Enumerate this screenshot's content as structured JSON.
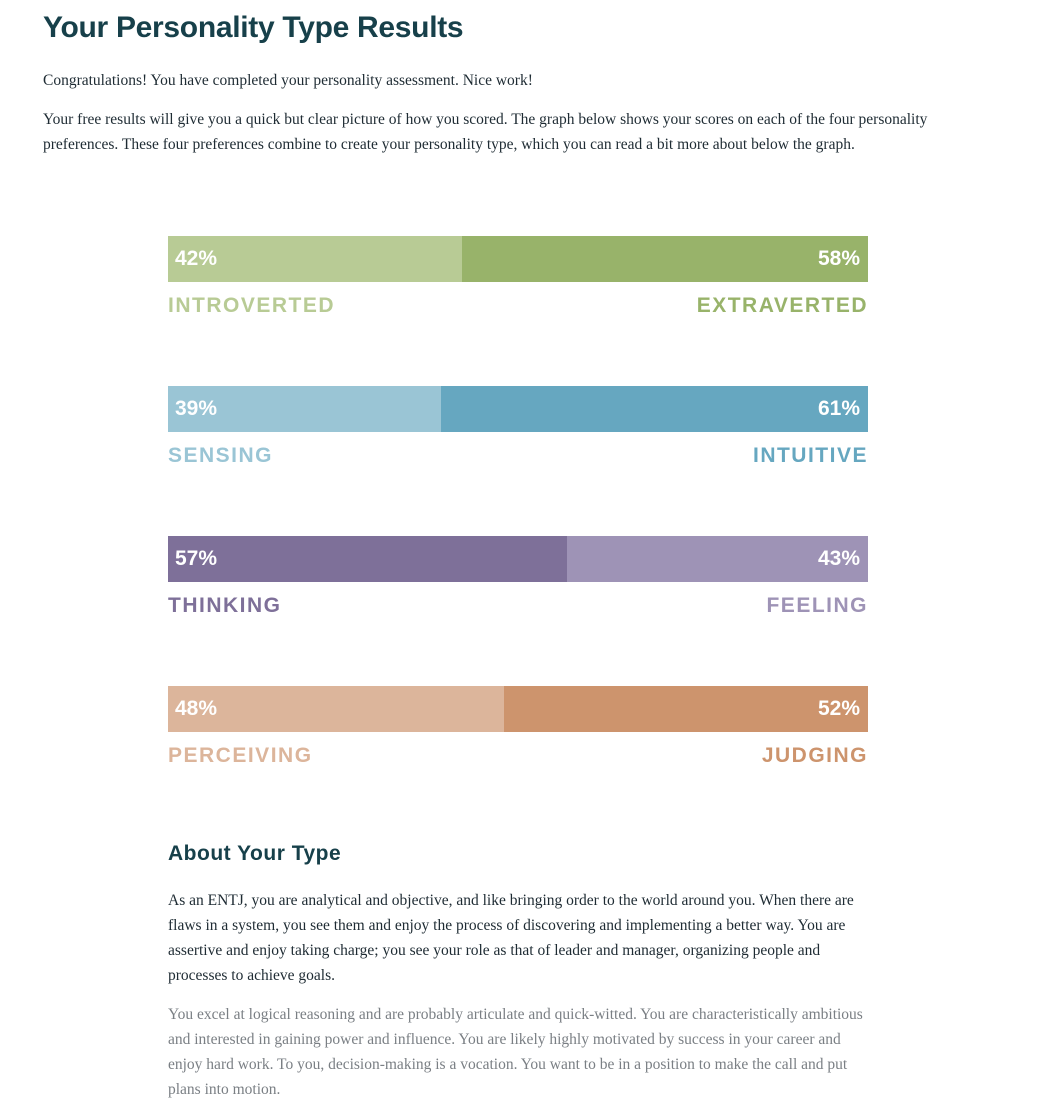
{
  "header": {
    "title": "Your Personality Type Results"
  },
  "intro": {
    "p1": "Congratulations! You have completed your personality assessment. Nice work!",
    "p2": "Your free results will give you a quick but clear picture of how you scored. The graph below shows your scores on each of the four personality preferences. These four preferences combine to create your personality type, which you can read a bit more about below the graph."
  },
  "chart_data": {
    "type": "bar",
    "stacked": true,
    "orientation": "horizontal",
    "xlim": [
      0,
      100
    ],
    "rows": [
      {
        "left": {
          "label": "INTROVERTED",
          "value": 42,
          "pct_text": "42%",
          "color": "#b8cb95",
          "text_color": "#b8cb95"
        },
        "right": {
          "label": "EXTRAVERTED",
          "value": 58,
          "pct_text": "58%",
          "color": "#98b36a",
          "text_color": "#98b36a"
        }
      },
      {
        "left": {
          "label": "SENSING",
          "value": 39,
          "pct_text": "39%",
          "color": "#9ac5d5",
          "text_color": "#9ac5d5"
        },
        "right": {
          "label": "INTUITIVE",
          "value": 61,
          "pct_text": "61%",
          "color": "#66a7c0",
          "text_color": "#66a7c0"
        }
      },
      {
        "left": {
          "label": "THINKING",
          "value": 57,
          "pct_text": "57%",
          "color": "#7e7099",
          "text_color": "#7e7099"
        },
        "right": {
          "label": "FEELING",
          "value": 43,
          "pct_text": "43%",
          "color": "#9e93b6",
          "text_color": "#9e93b6"
        }
      },
      {
        "left": {
          "label": "PERCEIVING",
          "value": 48,
          "pct_text": "48%",
          "color": "#dcb59b",
          "text_color": "#dcb59b"
        },
        "right": {
          "label": "JUDGING",
          "value": 52,
          "pct_text": "52%",
          "color": "#cd946d",
          "text_color": "#cd946d"
        }
      }
    ]
  },
  "about": {
    "title": "About Your Type",
    "p1": "As an ENTJ, you are analytical and objective, and like bringing order to the world around you. When there are flaws in a system, you see them and enjoy the process of discovering and implementing a better way. You are assertive and enjoy taking charge; you see your role as that of leader and manager, organizing people and processes to achieve goals.",
    "p2": "You excel at logical reasoning and are probably articulate and quick-witted. You are characteristically ambitious and interested in gaining power and influence. You are likely highly motivated by success in your career and enjoy hard work. To you, decision-making is a vocation. You want to be in a position to make the call and put plans into motion."
  }
}
